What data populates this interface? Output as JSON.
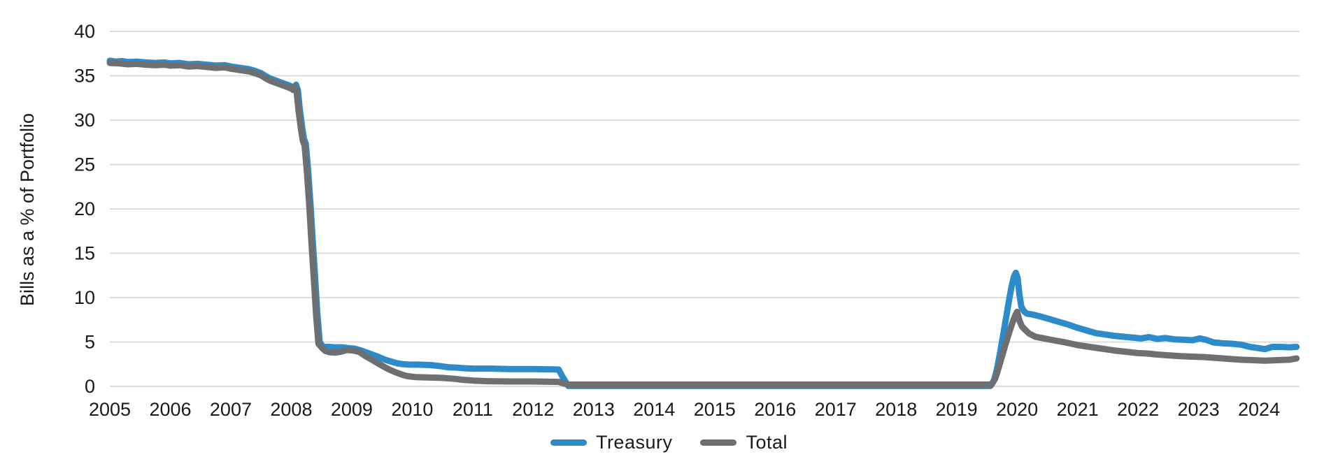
{
  "chart_data": {
    "type": "line",
    "title": "",
    "ylabel": "Bills as a % of Portfolio",
    "xlabel": "",
    "ylim": [
      0,
      40
    ],
    "xlim": [
      2005,
      2024.67
    ],
    "yticks": [
      0,
      5,
      10,
      15,
      20,
      25,
      30,
      35,
      40
    ],
    "xticks": [
      2005,
      2006,
      2007,
      2008,
      2009,
      2010,
      2011,
      2012,
      2013,
      2014,
      2015,
      2016,
      2017,
      2018,
      2019,
      2020,
      2021,
      2022,
      2023,
      2024
    ],
    "grid": "horizontal",
    "legend_position": "bottom",
    "colors": {
      "treasury": "#2E8BC9",
      "total": "#6E6F72",
      "gridline": "#DCDCDC",
      "text": "#1A1A1A",
      "background": "#FFFFFF"
    },
    "series": [
      {
        "name": "Treasury",
        "color_key": "treasury",
        "points": [
          [
            2005.0,
            36.7
          ],
          [
            2005.1,
            36.6
          ],
          [
            2005.2,
            36.65
          ],
          [
            2005.3,
            36.55
          ],
          [
            2005.45,
            36.6
          ],
          [
            2005.6,
            36.5
          ],
          [
            2005.75,
            36.45
          ],
          [
            2005.9,
            36.5
          ],
          [
            2006.0,
            36.4
          ],
          [
            2006.15,
            36.45
          ],
          [
            2006.3,
            36.3
          ],
          [
            2006.45,
            36.35
          ],
          [
            2006.6,
            36.25
          ],
          [
            2006.75,
            36.15
          ],
          [
            2006.9,
            36.2
          ],
          [
            2007.0,
            36.05
          ],
          [
            2007.1,
            35.95
          ],
          [
            2007.2,
            35.85
          ],
          [
            2007.3,
            35.75
          ],
          [
            2007.4,
            35.55
          ],
          [
            2007.5,
            35.3
          ],
          [
            2007.57,
            35.0
          ],
          [
            2007.65,
            34.7
          ],
          [
            2007.75,
            34.45
          ],
          [
            2007.85,
            34.2
          ],
          [
            2007.95,
            33.95
          ],
          [
            2008.02,
            33.75
          ],
          [
            2008.05,
            33.6
          ],
          [
            2008.08,
            34.0
          ],
          [
            2008.11,
            33.4
          ],
          [
            2008.14,
            31.3
          ],
          [
            2008.18,
            29.2
          ],
          [
            2008.21,
            27.9
          ],
          [
            2008.24,
            27.35
          ],
          [
            2008.28,
            24.3
          ],
          [
            2008.32,
            20.3
          ],
          [
            2008.36,
            15.8
          ],
          [
            2008.39,
            12.7
          ],
          [
            2008.43,
            8.3
          ],
          [
            2008.47,
            5.0
          ],
          [
            2008.52,
            4.5
          ],
          [
            2008.62,
            4.45
          ],
          [
            2008.72,
            4.4
          ],
          [
            2008.85,
            4.4
          ],
          [
            2008.95,
            4.3
          ],
          [
            2009.05,
            4.25
          ],
          [
            2009.15,
            4.05
          ],
          [
            2009.25,
            3.8
          ],
          [
            2009.35,
            3.55
          ],
          [
            2009.45,
            3.3
          ],
          [
            2009.55,
            3.0
          ],
          [
            2009.65,
            2.8
          ],
          [
            2009.75,
            2.6
          ],
          [
            2009.85,
            2.5
          ],
          [
            2009.95,
            2.45
          ],
          [
            2010.1,
            2.45
          ],
          [
            2010.3,
            2.4
          ],
          [
            2010.45,
            2.3
          ],
          [
            2010.6,
            2.15
          ],
          [
            2010.75,
            2.1
          ],
          [
            2010.85,
            2.05
          ],
          [
            2011.0,
            2.0
          ],
          [
            2011.3,
            2.0
          ],
          [
            2011.6,
            1.95
          ],
          [
            2012.0,
            1.95
          ],
          [
            2012.42,
            1.9
          ],
          [
            2012.5,
            0.9
          ],
          [
            2012.58,
            0.05
          ],
          [
            2013.5,
            0.05
          ],
          [
            2014.5,
            0.05
          ],
          [
            2015.5,
            0.05
          ],
          [
            2016.5,
            0.05
          ],
          [
            2017.5,
            0.05
          ],
          [
            2018.5,
            0.05
          ],
          [
            2019.56,
            0.05
          ],
          [
            2019.62,
            0.7
          ],
          [
            2019.67,
            2.0
          ],
          [
            2019.72,
            3.8
          ],
          [
            2019.77,
            5.8
          ],
          [
            2019.82,
            7.8
          ],
          [
            2019.87,
            9.8
          ],
          [
            2019.91,
            11.3
          ],
          [
            2019.95,
            12.4
          ],
          [
            2019.98,
            12.8
          ],
          [
            2020.01,
            12.2
          ],
          [
            2020.04,
            10.3
          ],
          [
            2020.07,
            9.0
          ],
          [
            2020.11,
            8.5
          ],
          [
            2020.16,
            8.2
          ],
          [
            2020.25,
            8.1
          ],
          [
            2020.4,
            7.85
          ],
          [
            2020.55,
            7.55
          ],
          [
            2020.7,
            7.25
          ],
          [
            2020.85,
            6.95
          ],
          [
            2021.0,
            6.6
          ],
          [
            2021.15,
            6.3
          ],
          [
            2021.3,
            6.0
          ],
          [
            2021.45,
            5.85
          ],
          [
            2021.6,
            5.7
          ],
          [
            2021.75,
            5.6
          ],
          [
            2021.9,
            5.5
          ],
          [
            2022.05,
            5.4
          ],
          [
            2022.18,
            5.55
          ],
          [
            2022.32,
            5.35
          ],
          [
            2022.45,
            5.45
          ],
          [
            2022.6,
            5.3
          ],
          [
            2022.75,
            5.25
          ],
          [
            2022.9,
            5.2
          ],
          [
            2023.02,
            5.4
          ],
          [
            2023.12,
            5.25
          ],
          [
            2023.25,
            4.95
          ],
          [
            2023.4,
            4.85
          ],
          [
            2023.55,
            4.8
          ],
          [
            2023.7,
            4.7
          ],
          [
            2023.85,
            4.45
          ],
          [
            2024.0,
            4.3
          ],
          [
            2024.1,
            4.2
          ],
          [
            2024.22,
            4.45
          ],
          [
            2024.35,
            4.45
          ],
          [
            2024.5,
            4.4
          ],
          [
            2024.62,
            4.45
          ]
        ]
      },
      {
        "name": "Total",
        "color_key": "total",
        "points": [
          [
            2005.0,
            36.45
          ],
          [
            2005.15,
            36.4
          ],
          [
            2005.3,
            36.3
          ],
          [
            2005.45,
            36.35
          ],
          [
            2005.6,
            36.25
          ],
          [
            2005.75,
            36.2
          ],
          [
            2005.9,
            36.25
          ],
          [
            2006.0,
            36.15
          ],
          [
            2006.15,
            36.2
          ],
          [
            2006.3,
            36.05
          ],
          [
            2006.45,
            36.1
          ],
          [
            2006.6,
            36.0
          ],
          [
            2006.75,
            35.9
          ],
          [
            2006.9,
            35.95
          ],
          [
            2007.0,
            35.8
          ],
          [
            2007.1,
            35.7
          ],
          [
            2007.2,
            35.6
          ],
          [
            2007.3,
            35.5
          ],
          [
            2007.4,
            35.3
          ],
          [
            2007.5,
            35.05
          ],
          [
            2007.57,
            34.75
          ],
          [
            2007.65,
            34.45
          ],
          [
            2007.75,
            34.2
          ],
          [
            2007.85,
            33.95
          ],
          [
            2007.95,
            33.7
          ],
          [
            2008.0,
            33.55
          ],
          [
            2008.03,
            33.4
          ],
          [
            2008.06,
            33.8
          ],
          [
            2008.09,
            33.2
          ],
          [
            2008.12,
            31.1
          ],
          [
            2008.16,
            29.0
          ],
          [
            2008.19,
            27.7
          ],
          [
            2008.22,
            27.15
          ],
          [
            2008.26,
            24.1
          ],
          [
            2008.3,
            20.1
          ],
          [
            2008.34,
            15.6
          ],
          [
            2008.37,
            12.5
          ],
          [
            2008.41,
            8.1
          ],
          [
            2008.45,
            4.8
          ],
          [
            2008.5,
            4.4
          ],
          [
            2008.56,
            4.0
          ],
          [
            2008.63,
            3.85
          ],
          [
            2008.72,
            3.8
          ],
          [
            2008.82,
            3.9
          ],
          [
            2008.92,
            4.1
          ],
          [
            2009.02,
            4.05
          ],
          [
            2009.12,
            3.9
          ],
          [
            2009.22,
            3.45
          ],
          [
            2009.32,
            3.05
          ],
          [
            2009.42,
            2.65
          ],
          [
            2009.52,
            2.25
          ],
          [
            2009.62,
            1.9
          ],
          [
            2009.72,
            1.6
          ],
          [
            2009.82,
            1.35
          ],
          [
            2009.92,
            1.15
          ],
          [
            2010.05,
            1.05
          ],
          [
            2010.25,
            1.0
          ],
          [
            2010.5,
            0.95
          ],
          [
            2010.7,
            0.85
          ],
          [
            2010.82,
            0.75
          ],
          [
            2011.0,
            0.65
          ],
          [
            2011.25,
            0.58
          ],
          [
            2011.6,
            0.55
          ],
          [
            2012.0,
            0.55
          ],
          [
            2012.42,
            0.5
          ],
          [
            2012.52,
            0.3
          ],
          [
            2012.6,
            0.2
          ],
          [
            2013.5,
            0.2
          ],
          [
            2014.5,
            0.2
          ],
          [
            2015.5,
            0.2
          ],
          [
            2016.5,
            0.2
          ],
          [
            2017.5,
            0.2
          ],
          [
            2018.5,
            0.2
          ],
          [
            2019.58,
            0.2
          ],
          [
            2019.64,
            0.9
          ],
          [
            2019.7,
            2.2
          ],
          [
            2019.76,
            3.6
          ],
          [
            2019.82,
            5.0
          ],
          [
            2019.88,
            6.3
          ],
          [
            2019.93,
            7.3
          ],
          [
            2019.97,
            8.0
          ],
          [
            2020.0,
            8.4
          ],
          [
            2020.04,
            7.4
          ],
          [
            2020.08,
            6.75
          ],
          [
            2020.13,
            6.4
          ],
          [
            2020.2,
            5.95
          ],
          [
            2020.3,
            5.6
          ],
          [
            2020.45,
            5.4
          ],
          [
            2020.6,
            5.2
          ],
          [
            2020.8,
            4.95
          ],
          [
            2021.0,
            4.65
          ],
          [
            2021.2,
            4.45
          ],
          [
            2021.4,
            4.25
          ],
          [
            2021.6,
            4.05
          ],
          [
            2021.8,
            3.9
          ],
          [
            2022.0,
            3.75
          ],
          [
            2022.15,
            3.7
          ],
          [
            2022.3,
            3.6
          ],
          [
            2022.5,
            3.5
          ],
          [
            2022.7,
            3.4
          ],
          [
            2022.9,
            3.35
          ],
          [
            2023.1,
            3.3
          ],
          [
            2023.3,
            3.2
          ],
          [
            2023.5,
            3.1
          ],
          [
            2023.7,
            3.0
          ],
          [
            2023.9,
            2.95
          ],
          [
            2024.1,
            2.9
          ],
          [
            2024.3,
            2.95
          ],
          [
            2024.5,
            3.0
          ],
          [
            2024.62,
            3.15
          ]
        ]
      }
    ],
    "legend": [
      {
        "label": "Treasury",
        "color_key": "treasury"
      },
      {
        "label": "Total",
        "color_key": "total"
      }
    ]
  }
}
